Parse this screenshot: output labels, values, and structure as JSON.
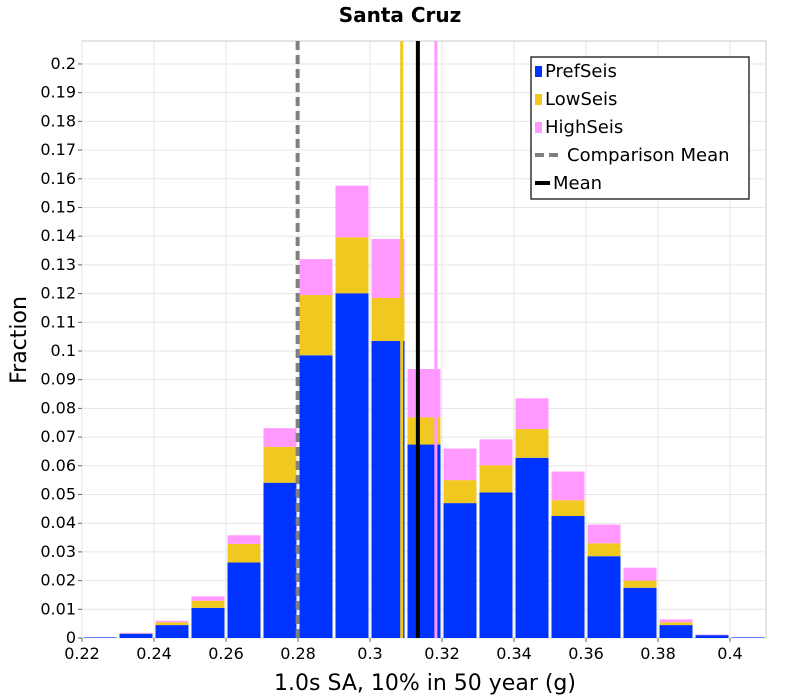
{
  "chart_data": {
    "type": "bar",
    "stacked": true,
    "title": "Santa Cruz",
    "xlabel": "1.0s SA, 10% in 50 year (g)",
    "ylabel": "Fraction",
    "xlim": [
      0.22,
      0.41
    ],
    "ylim": [
      0,
      0.208
    ],
    "x_ticks": [
      "0.22",
      "0.24",
      "0.26",
      "0.28",
      "0.3",
      "0.32",
      "0.34",
      "0.36",
      "0.38",
      "0.4"
    ],
    "y_ticks": [
      "0",
      "0.01",
      "0.02",
      "0.03",
      "0.04",
      "0.05",
      "0.06",
      "0.07",
      "0.08",
      "0.09",
      "0.1",
      "0.11",
      "0.12",
      "0.13",
      "0.14",
      "0.15",
      "0.16",
      "0.17",
      "0.18",
      "0.19",
      "0.2"
    ],
    "bin_width": 0.01,
    "bin_centers": [
      0.225,
      0.235,
      0.245,
      0.255,
      0.265,
      0.275,
      0.285,
      0.295,
      0.305,
      0.315,
      0.325,
      0.335,
      0.345,
      0.355,
      0.365,
      0.375,
      0.385,
      0.395,
      0.405
    ],
    "series": [
      {
        "name": "PrefSeis",
        "color": "#0033ff",
        "values": [
          0.0002,
          0.0015,
          0.0045,
          0.0105,
          0.0263,
          0.0541,
          0.0985,
          0.1201,
          0.1035,
          0.0674,
          0.047,
          0.0507,
          0.0628,
          0.0425,
          0.0285,
          0.0175,
          0.0045,
          0.001,
          0.0002
        ]
      },
      {
        "name": "LowSeis",
        "color": "#f0c820",
        "values": [
          0.0,
          0.0001,
          0.001,
          0.0025,
          0.0065,
          0.0125,
          0.021,
          0.0195,
          0.015,
          0.0095,
          0.008,
          0.0095,
          0.01,
          0.0055,
          0.0045,
          0.0025,
          0.001,
          0.0,
          0.0
        ]
      },
      {
        "name": "HighSeis",
        "color": "#ff99ff",
        "values": [
          0.0,
          0.0002,
          0.0005,
          0.0015,
          0.003,
          0.0065,
          0.0125,
          0.018,
          0.0205,
          0.0168,
          0.011,
          0.009,
          0.0107,
          0.01,
          0.0065,
          0.0045,
          0.001,
          0.0002,
          0.0
        ]
      }
    ],
    "vertical_lines": [
      {
        "name": "Comparison Mean",
        "x": 0.2799,
        "color": "#808080",
        "style": "dashed"
      },
      {
        "name": "Mean",
        "x": 0.3133,
        "color": "#000000",
        "style": "solid"
      },
      {
        "name": "LowSeis mean",
        "x": 0.3088,
        "color": "#f0c820",
        "style": "solid"
      },
      {
        "name": "HighSeis mean",
        "x": 0.3183,
        "color": "#ff99ff",
        "style": "solid"
      }
    ],
    "legend": {
      "position": "top-right",
      "items": [
        {
          "label": "PrefSeis",
          "kind": "box",
          "color": "#0033ff"
        },
        {
          "label": "LowSeis",
          "kind": "box",
          "color": "#f0c820"
        },
        {
          "label": "HighSeis",
          "kind": "box",
          "color": "#ff99ff"
        },
        {
          "label": "Comparison Mean",
          "kind": "dash",
          "color": "#808080"
        },
        {
          "label": "Mean",
          "kind": "line",
          "color": "#000000"
        }
      ]
    }
  }
}
